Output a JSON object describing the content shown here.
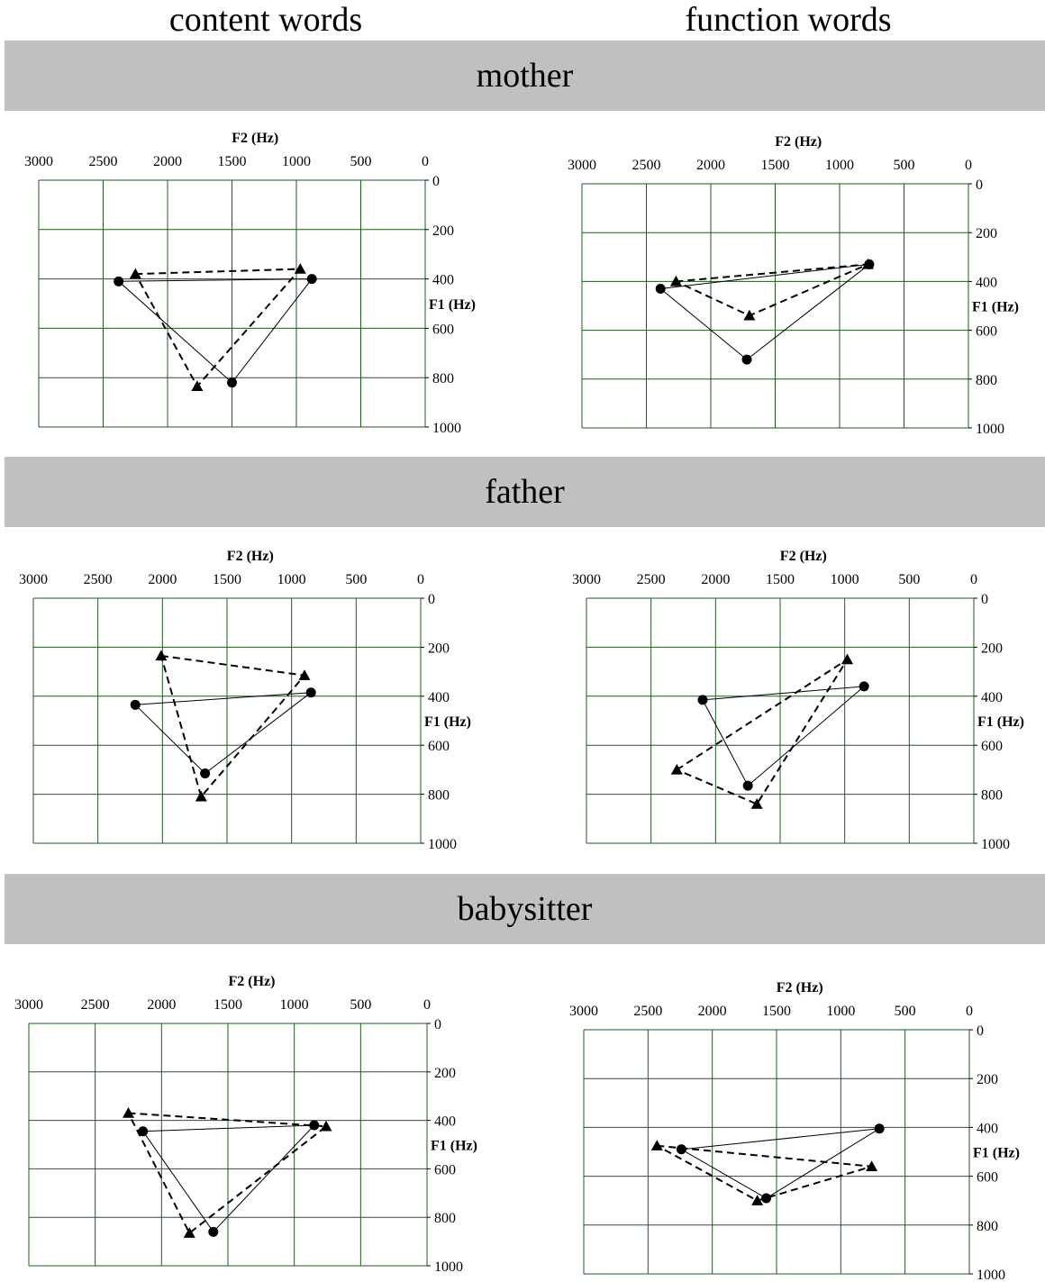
{
  "headings": {
    "left": "content words",
    "right": "function words"
  },
  "panels": [
    "mother",
    "father",
    "babysitter"
  ],
  "chart_data": [
    {
      "type": "line",
      "panel": "mother",
      "column": "content words",
      "xlabel": "F2 (Hz)",
      "ylabel": "F1 (Hz)",
      "xlim": [
        3000,
        0
      ],
      "ylim": [
        0,
        1000
      ],
      "xticks": [
        "3000",
        "2500",
        "2000",
        "1500",
        "1000",
        "500",
        "0"
      ],
      "yticks": [
        "0",
        "200",
        "400",
        "600",
        "800",
        "1000"
      ],
      "grid": true,
      "series": [
        {
          "marker": "circle",
          "style": "solid",
          "points": [
            [
              2380,
              410
            ],
            [
              880,
              400
            ],
            [
              1500,
              820
            ]
          ]
        },
        {
          "marker": "triangle",
          "style": "dashed",
          "points": [
            [
              2250,
              380
            ],
            [
              970,
              360
            ],
            [
              1770,
              835
            ]
          ]
        }
      ]
    },
    {
      "type": "line",
      "panel": "mother",
      "column": "function words",
      "xlabel": "F2 (Hz)",
      "ylabel": "F1 (Hz)",
      "xlim": [
        3000,
        0
      ],
      "ylim": [
        0,
        1000
      ],
      "xticks": [
        "3000",
        "2500",
        "2000",
        "1500",
        "1000",
        "500",
        "0"
      ],
      "yticks": [
        "0",
        "200",
        "400",
        "600",
        "800",
        "1000"
      ],
      "grid": true,
      "series": [
        {
          "marker": "circle",
          "style": "solid",
          "points": [
            [
              2390,
              430
            ],
            [
              770,
              330
            ],
            [
              1720,
              720
            ]
          ]
        },
        {
          "marker": "triangle",
          "style": "dashed",
          "points": [
            [
              2270,
              400
            ],
            [
              780,
              330
            ],
            [
              1700,
              540
            ]
          ]
        }
      ]
    },
    {
      "type": "line",
      "panel": "father",
      "column": "content words",
      "xlabel": "F2 (Hz)",
      "ylabel": "F1 (Hz)",
      "xlim": [
        3000,
        0
      ],
      "ylim": [
        0,
        1000
      ],
      "xticks": [
        "3000",
        "2500",
        "2000",
        "1500",
        "1000",
        "500",
        "0"
      ],
      "yticks": [
        "0",
        "200",
        "400",
        "600",
        "800",
        "1000"
      ],
      "grid": true,
      "series": [
        {
          "marker": "circle",
          "style": "solid",
          "points": [
            [
              2210,
              435
            ],
            [
              850,
              385
            ],
            [
              1670,
              715
            ]
          ]
        },
        {
          "marker": "triangle",
          "style": "dashed",
          "points": [
            [
              2010,
              235
            ],
            [
              900,
              315
            ],
            [
              1700,
              810
            ]
          ]
        }
      ]
    },
    {
      "type": "line",
      "panel": "father",
      "column": "function words",
      "xlabel": "F2 (Hz)",
      "ylabel": "F1 (Hz)",
      "xlim": [
        3000,
        0
      ],
      "ylim": [
        0,
        1000
      ],
      "xticks": [
        "3000",
        "2500",
        "2000",
        "1500",
        "1000",
        "500",
        "0"
      ],
      "yticks": [
        "0",
        "200",
        "400",
        "600",
        "800",
        "1000"
      ],
      "grid": true,
      "series": [
        {
          "marker": "circle",
          "style": "solid",
          "points": [
            [
              2100,
              415
            ],
            [
              850,
              360
            ],
            [
              1750,
              765
            ]
          ]
        },
        {
          "marker": "triangle",
          "style": "dashed",
          "points": [
            [
              2300,
              700
            ],
            [
              980,
              250
            ],
            [
              1680,
              840
            ]
          ]
        }
      ]
    },
    {
      "type": "line",
      "panel": "babysitter",
      "column": "content words",
      "xlabel": "F2 (Hz)",
      "ylabel": "F1 (Hz)",
      "xlim": [
        3000,
        0
      ],
      "ylim": [
        0,
        1000
      ],
      "xticks": [
        "3000",
        "2500",
        "2000",
        "1500",
        "1000",
        "500",
        "0"
      ],
      "yticks": [
        "0",
        "200",
        "400",
        "600",
        "800",
        "1000"
      ],
      "grid": true,
      "series": [
        {
          "marker": "circle",
          "style": "solid",
          "points": [
            [
              2140,
              445
            ],
            [
              850,
              420
            ],
            [
              1610,
              860
            ]
          ]
        },
        {
          "marker": "triangle",
          "style": "dashed",
          "points": [
            [
              2250,
              370
            ],
            [
              760,
              425
            ],
            [
              1790,
              865
            ]
          ]
        }
      ]
    },
    {
      "type": "line",
      "panel": "babysitter",
      "column": "function words",
      "xlabel": "F2 (Hz)",
      "ylabel": "F1 (Hz)",
      "xlim": [
        3000,
        0
      ],
      "ylim": [
        0,
        1000
      ],
      "xticks": [
        "3000",
        "2500",
        "2000",
        "1500",
        "1000",
        "500",
        "0"
      ],
      "yticks": [
        "0",
        "200",
        "400",
        "600",
        "800",
        "1000"
      ],
      "grid": true,
      "series": [
        {
          "marker": "circle",
          "style": "solid",
          "points": [
            [
              2240,
              490
            ],
            [
              700,
              405
            ],
            [
              1580,
              690
            ]
          ]
        },
        {
          "marker": "triangle",
          "style": "dashed",
          "points": [
            [
              2430,
              475
            ],
            [
              760,
              560
            ],
            [
              1650,
              700
            ]
          ]
        }
      ]
    }
  ]
}
